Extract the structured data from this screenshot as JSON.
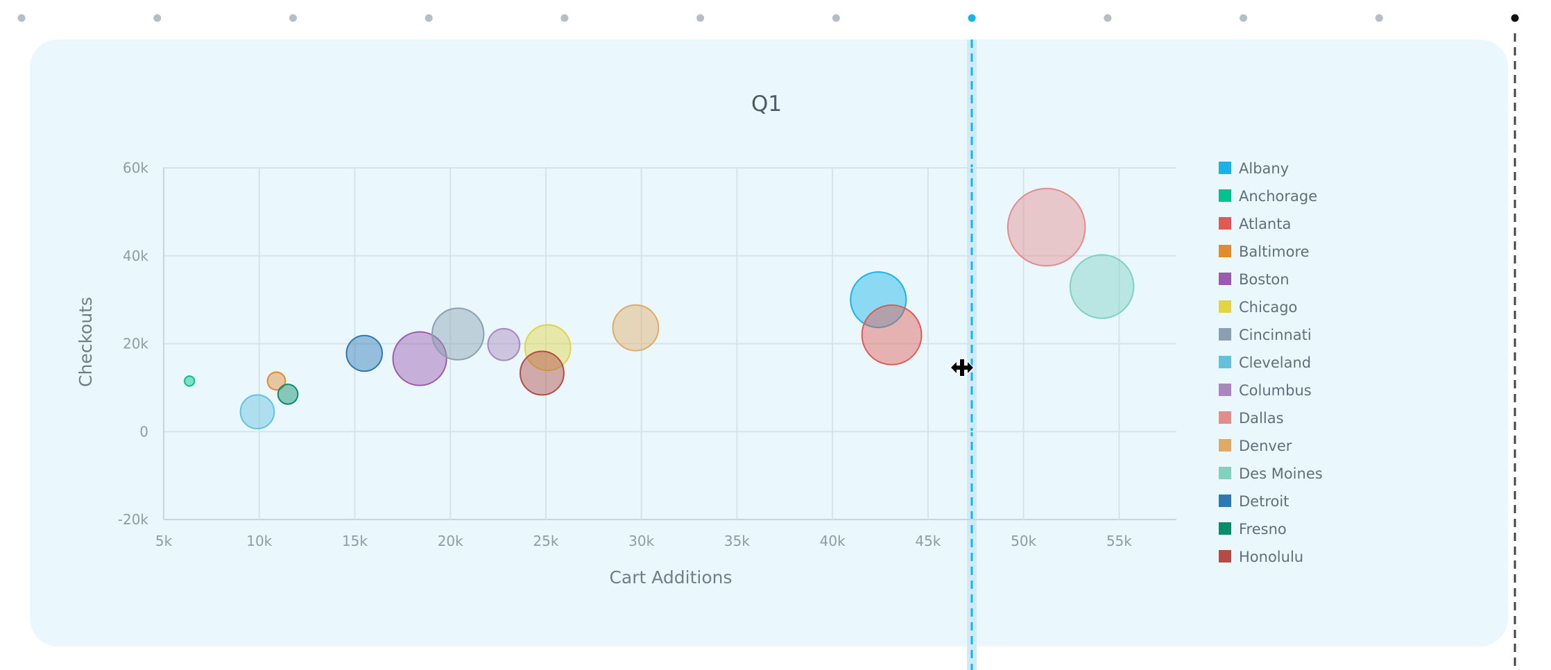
{
  "timeline": {
    "step_count": 12,
    "active_step": 8,
    "end_step": 12,
    "colors": {
      "inactive": "#b3bfc8",
      "active": "#1ab3e6",
      "end": "#111111"
    }
  },
  "chart_data": {
    "type": "scatter",
    "subtype": "bubble",
    "title": "Q1",
    "xlabel": "Cart Additions",
    "ylabel": "Checkouts",
    "xlim": [
      5000,
      58000
    ],
    "ylim": [
      -20000,
      60000
    ],
    "x_ticks": [
      5000,
      10000,
      15000,
      20000,
      25000,
      30000,
      35000,
      40000,
      45000,
      50000,
      55000
    ],
    "x_tick_labels": [
      "5k",
      "10k",
      "15k",
      "20k",
      "25k",
      "30k",
      "35k",
      "40k",
      "45k",
      "50k",
      "55k"
    ],
    "y_ticks": [
      -20000,
      0,
      20000,
      40000,
      60000
    ],
    "y_tick_labels": [
      "-20k",
      "0",
      "20k",
      "40k",
      "60k"
    ],
    "grid": true,
    "legend_position": "right",
    "series": [
      {
        "name": "Albany",
        "color": "#1ab3e6",
        "x": 42400,
        "y": 30000,
        "size": 28
      },
      {
        "name": "Anchorage",
        "color": "#00c28f",
        "x": 6350,
        "y": 11500,
        "size": 5
      },
      {
        "name": "Atlanta",
        "color": "#e05a55",
        "x": 43100,
        "y": 22000,
        "size": 30
      },
      {
        "name": "Baltimore",
        "color": "#e38a2e",
        "x": 10900,
        "y": 11500,
        "size": 9
      },
      {
        "name": "Boston",
        "color": "#9b59b0",
        "x": 18400,
        "y": 16600,
        "size": 27
      },
      {
        "name": "Chicago",
        "color": "#e2d442",
        "x": 25100,
        "y": 19100,
        "size": 23
      },
      {
        "name": "Cincinnati",
        "color": "#8aa0b0",
        "x": 20400,
        "y": 22200,
        "size": 26
      },
      {
        "name": "Cleveland",
        "color": "#63c1dc",
        "x": 9900,
        "y": 4500,
        "size": 17
      },
      {
        "name": "Columbus",
        "color": "#a987bd",
        "x": 22800,
        "y": 19800,
        "size": 16
      },
      {
        "name": "Dallas",
        "color": "#e48b8b",
        "x": 51200,
        "y": 46500,
        "size": 39
      },
      {
        "name": "Denver",
        "color": "#dfaa66",
        "x": 29700,
        "y": 23600,
        "size": 23
      },
      {
        "name": "Des Moines",
        "color": "#7fd1c1",
        "x": 54100,
        "y": 33000,
        "size": 32
      },
      {
        "name": "Detroit",
        "color": "#2e78b3",
        "x": 15500,
        "y": 17800,
        "size": 18
      },
      {
        "name": "Fresno",
        "color": "#0a8c6b",
        "x": 11500,
        "y": 8500,
        "size": 10
      },
      {
        "name": "Honolulu",
        "color": "#b24c45",
        "x": 24800,
        "y": 13300,
        "size": 22
      }
    ]
  }
}
